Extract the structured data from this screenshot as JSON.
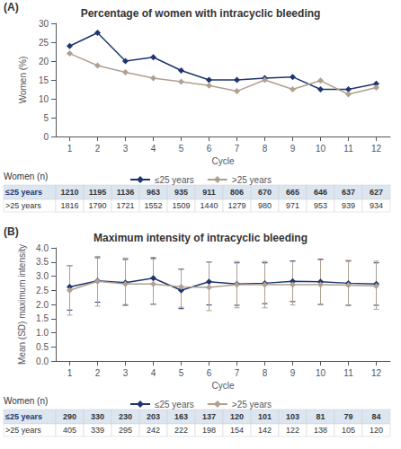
{
  "chart_data": [
    {
      "type": "line",
      "panel_label": "(A)",
      "title": "Percentage of women with intracyclic bleeding",
      "x_label": "Cycle",
      "y_label": "Women (%)",
      "x": [
        1,
        2,
        3,
        4,
        5,
        6,
        7,
        8,
        9,
        10,
        11,
        12
      ],
      "xlim": [
        0.5,
        12.5
      ],
      "xticks": [
        1,
        2,
        3,
        4,
        5,
        6,
        7,
        8,
        9,
        10,
        11,
        12
      ],
      "ylim": [
        0,
        30
      ],
      "yticks": [
        0,
        5,
        10,
        15,
        20,
        25,
        30
      ],
      "grid": false,
      "legend": "bottom",
      "series": [
        {
          "name": "≤25 years",
          "color": "#1f3570",
          "marker": "diamond",
          "values": [
            24.0,
            27.5,
            20.0,
            21.0,
            17.5,
            15.0,
            15.0,
            15.5,
            15.8,
            12.5,
            12.5,
            14.0
          ]
        },
        {
          "name": ">25 years",
          "color": "#b0a090",
          "marker": "diamond",
          "values": [
            22.0,
            18.8,
            17.0,
            15.5,
            14.5,
            13.5,
            12.0,
            15.0,
            12.5,
            14.8,
            11.2,
            13.0
          ]
        }
      ],
      "table": {
        "header": "Women (n)",
        "rows": [
          {
            "name": "≤25 years",
            "color": "#dce6f1",
            "values": [
              1210,
              1195,
              1136,
              963,
              935,
              911,
              806,
              670,
              665,
              646,
              637,
              627
            ]
          },
          {
            "name": ">25 years",
            "color": "#ffffff",
            "values": [
              1816,
              1790,
              1721,
              1552,
              1509,
              1440,
              1279,
              980,
              971,
              953,
              939,
              934
            ]
          }
        ]
      }
    },
    {
      "type": "line",
      "panel_label": "(B)",
      "title": "Maximum intensity of intracyclic bleeding",
      "x_label": "Cycle",
      "y_label": "Mean (SD) maximum intensity",
      "x": [
        1,
        2,
        3,
        4,
        5,
        6,
        7,
        8,
        9,
        10,
        11,
        12
      ],
      "xlim": [
        0.5,
        12.5
      ],
      "xticks": [
        1,
        2,
        3,
        4,
        5,
        6,
        7,
        8,
        9,
        10,
        11,
        12
      ],
      "ylim": [
        0.0,
        4.0
      ],
      "yticks": [
        {
          "value": 0,
          "label": "0.0"
        },
        0.5,
        {
          "value": 1,
          "label": "1.0"
        },
        1.5,
        {
          "value": 2,
          "label": "2.0"
        },
        2.5,
        {
          "value": 3,
          "label": "3.0"
        },
        3.5,
        {
          "value": 4,
          "label": "4.0"
        }
      ],
      "grid": false,
      "legend": "bottom",
      "series": [
        {
          "name": "≤25 years",
          "color": "#1f3570",
          "marker": "diamond",
          "values": [
            2.62,
            2.83,
            2.77,
            2.93,
            2.5,
            2.8,
            2.72,
            2.75,
            2.82,
            2.8,
            2.75,
            2.72
          ],
          "error_lower": [
            0.82,
            0.75,
            0.8,
            0.92,
            0.65,
            0.82,
            0.75,
            0.72,
            0.72,
            0.8,
            0.78,
            0.75
          ],
          "error_upper": [
            0.75,
            0.82,
            0.82,
            0.72,
            0.75,
            0.7,
            0.75,
            0.72,
            0.72,
            0.8,
            0.78,
            0.75
          ]
        },
        {
          "name": ">25 years",
          "color": "#b0a090",
          "marker": "diamond",
          "values": [
            2.5,
            2.82,
            2.72,
            2.72,
            2.62,
            2.6,
            2.7,
            2.7,
            2.7,
            2.7,
            2.68,
            2.65
          ],
          "error_lower": [
            0.88,
            0.88,
            0.72,
            0.72,
            0.72,
            0.82,
            0.82,
            0.82,
            0.72,
            0.72,
            0.72,
            0.82
          ],
          "error_upper": [
            0.88,
            0.88,
            0.92,
            0.88,
            0.62,
            0.9,
            0.82,
            0.82,
            0.82,
            0.88,
            0.88,
            0.88
          ]
        }
      ],
      "table": {
        "header": "Women (n)",
        "rows": [
          {
            "name": "≤25 years",
            "color": "#dce6f1",
            "values": [
              290,
              330,
              230,
              203,
              163,
              137,
              120,
              101,
              103,
              81,
              79,
              84
            ]
          },
          {
            "name": ">25 years",
            "color": "#ffffff",
            "values": [
              405,
              339,
              295,
              242,
              222,
              198,
              154,
              142,
              122,
              138,
              105,
              120
            ]
          }
        ]
      }
    }
  ]
}
